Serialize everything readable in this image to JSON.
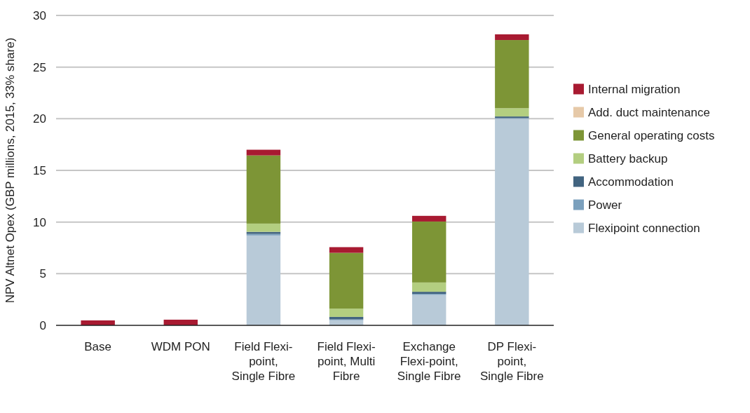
{
  "chart_data": {
    "type": "bar",
    "stacked": true,
    "ylabel": "NPV Altnet Opex (GBP millions, 2015, 33% share)",
    "categories": [
      "Base",
      "WDM PON",
      "Field Flexi-point, Single Fibre",
      "Field Flexi-point, Multi Fibre",
      "Exchange Flexi-point, Single Fibre",
      "DP Flexi-point, Single Fibre"
    ],
    "series": [
      {
        "name": "Flexipoint connection",
        "color": "#b8cad8",
        "values": [
          0,
          0,
          8.7,
          0.5,
          2.95,
          20.0
        ]
      },
      {
        "name": "Power",
        "color": "#7ba0bd",
        "values": [
          0,
          0,
          0.15,
          0.07,
          0.1,
          0.07
        ]
      },
      {
        "name": "Accommodation",
        "color": "#426480",
        "values": [
          0,
          0,
          0.2,
          0.25,
          0.2,
          0.15
        ]
      },
      {
        "name": "Battery backup",
        "color": "#b3ce80",
        "values": [
          0,
          0,
          0.8,
          0.8,
          0.9,
          0.8
        ]
      },
      {
        "name": "General operating costs",
        "color": "#7d9536",
        "values": [
          0,
          0,
          6.6,
          5.4,
          5.9,
          6.6
        ]
      },
      {
        "name": "Add. duct maintenance",
        "color": "#e6c9a8",
        "values": [
          0,
          0,
          0,
          0,
          0,
          0
        ]
      },
      {
        "name": "Internal migration",
        "color": "#a81a31",
        "values": [
          0.48,
          0.55,
          0.55,
          0.55,
          0.55,
          0.55
        ]
      }
    ],
    "ylim": [
      0,
      30
    ],
    "yticks": [
      0,
      5,
      10,
      15,
      20,
      25,
      30
    ],
    "grid": "y",
    "legend": "right"
  }
}
